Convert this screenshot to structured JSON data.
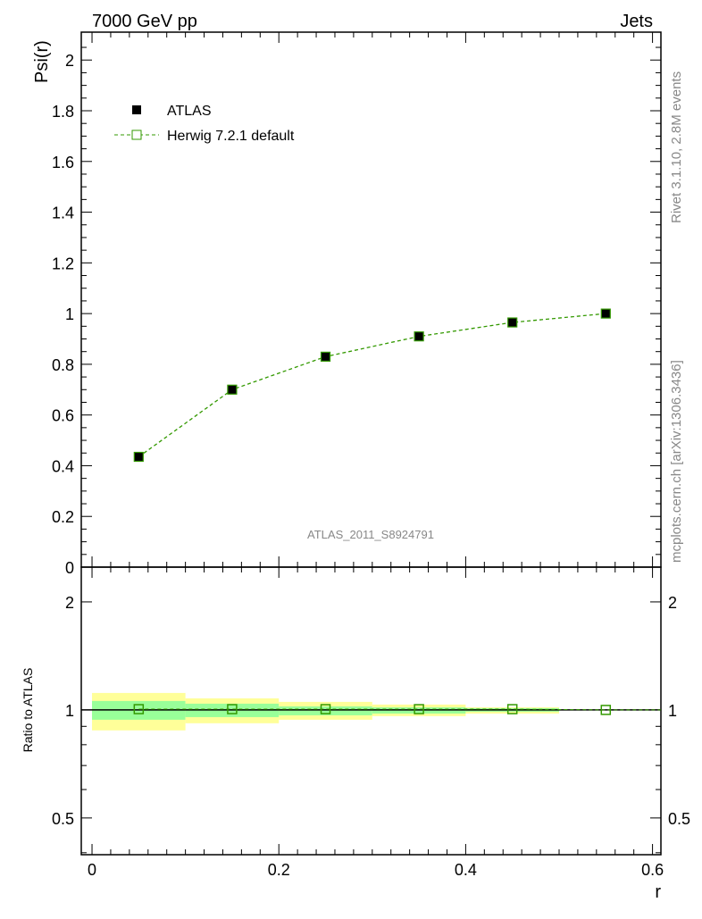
{
  "chart_data": [
    {
      "type": "line",
      "title_left": "7000 GeV pp",
      "title_right": "Jets",
      "ylabel": "Psi(r)",
      "xlim": [
        -0.0115,
        0.609
      ],
      "ylim": [
        0,
        2.11
      ],
      "yticks": [
        0,
        0.2,
        0.4,
        0.6,
        0.8,
        1,
        1.2,
        1.4,
        1.6,
        1.8,
        2
      ],
      "ytick_labels": [
        "0",
        "0.2",
        "0.4",
        "0.6",
        "0.8",
        "1",
        "1.2",
        "1.4",
        "1.6",
        "1.8",
        "2"
      ],
      "legend_placement": "top-left",
      "series": [
        {
          "name": "ATLAS",
          "style": "black filled square markers",
          "x": [
            0.05,
            0.15,
            0.25,
            0.35,
            0.45,
            0.55
          ],
          "y": [
            0.435,
            0.7,
            0.83,
            0.91,
            0.965,
            1.0
          ]
        },
        {
          "name": "Herwig 7.2.1 default",
          "style": "green dashed line, open square markers",
          "x": [
            0.05,
            0.15,
            0.25,
            0.35,
            0.45,
            0.55
          ],
          "y": [
            0.435,
            0.7,
            0.83,
            0.91,
            0.965,
            1.0
          ]
        }
      ],
      "annotation": "ATLAS_2011_S8924791"
    },
    {
      "type": "line",
      "ylabel": "Ratio to ATLAS",
      "xlabel": "r",
      "yscale": "log",
      "ylim": [
        0.395,
        2.5
      ],
      "xlim": [
        -0.0115,
        0.609
      ],
      "yticks": [
        0.5,
        1,
        2
      ],
      "ytick_labels": [
        "0.5",
        "1",
        "2"
      ],
      "xticks": [
        0,
        0.2,
        0.4,
        0.6
      ],
      "xtick_labels": [
        "0",
        "0.2",
        "0.4",
        "0.6"
      ],
      "bins": [
        [
          0,
          0.1
        ],
        [
          0.1,
          0.2
        ],
        [
          0.2,
          0.3
        ],
        [
          0.3,
          0.4
        ],
        [
          0.4,
          0.5
        ],
        [
          0.5,
          0.6
        ]
      ],
      "band_total": [
        [
          0.877,
          1.115
        ],
        [
          0.918,
          1.077
        ],
        [
          0.939,
          1.053
        ],
        [
          0.961,
          1.035
        ],
        [
          0.977,
          1.017
        ],
        [
          1,
          1
        ]
      ],
      "band_stat": [
        [
          0.939,
          1.059
        ],
        [
          0.955,
          1.041
        ],
        [
          0.966,
          1.023
        ],
        [
          0.977,
          1.017
        ],
        [
          0.989,
          1.011
        ],
        [
          1,
          1
        ]
      ],
      "ratio": {
        "x": [
          0.05,
          0.15,
          0.25,
          0.35,
          0.45,
          0.55
        ],
        "y": [
          1.005,
          1.005,
          1.005,
          1.005,
          1.005,
          1.0
        ]
      }
    }
  ],
  "side": {
    "rivet": "Rivet 3.1.10,  2.8M events",
    "mcplots": "mcplots.cern.ch [arXiv:1306.3436]"
  },
  "colors": {
    "mc": "#339900",
    "yellow": "#ffff99",
    "green": "#99ff99",
    "text_gray": "#888888"
  }
}
